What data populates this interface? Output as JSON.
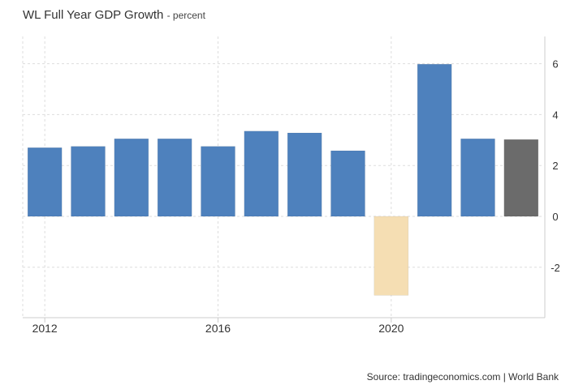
{
  "title": "WL Full Year GDP Growth",
  "subtitle": "- percent",
  "source": "Source: tradingeconomics.com | World Bank",
  "chart_data": {
    "type": "bar",
    "title": "WL Full Year GDP Growth",
    "subtitle": "- percent",
    "ylabel": "percent",
    "categories": [
      "2012",
      "2013",
      "2014",
      "2015",
      "2016",
      "2017",
      "2018",
      "2019",
      "2020",
      "2021",
      "2022",
      "2023"
    ],
    "values": [
      2.7,
      2.75,
      3.05,
      3.05,
      2.75,
      3.35,
      3.28,
      2.58,
      -3.1,
      5.98,
      3.05,
      3.02
    ],
    "x_tick_labels": [
      "2012",
      "2016",
      "2020"
    ],
    "y_ticks": [
      -2,
      0,
      2,
      4,
      6
    ],
    "ylim": [
      -4,
      7
    ],
    "y_axis_position": "right",
    "grid": true,
    "colors": {
      "positive": "#4e81bd",
      "negative": "#f5deb3",
      "forecast": "#6b6b6b",
      "grid": "#dddddd",
      "axis": "#cccccc"
    },
    "bar_colors": [
      "positive",
      "positive",
      "positive",
      "positive",
      "positive",
      "positive",
      "positive",
      "positive",
      "negative",
      "positive",
      "positive",
      "forecast"
    ]
  }
}
